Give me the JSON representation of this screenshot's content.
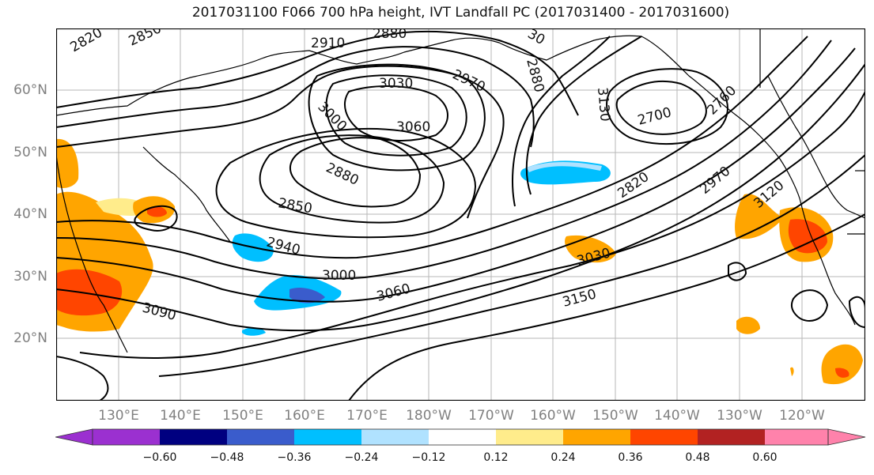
{
  "title": "2017031100 F066 700 hPa height, IVT Landfall PC (2017031400 - 2017031600)",
  "lat_labels": [
    "60°N",
    "50°N",
    "40°N",
    "30°N",
    "20°N"
  ],
  "lon_labels": [
    "130°E",
    "140°E",
    "150°E",
    "160°E",
    "170°E",
    "180°W",
    "170°W",
    "160°W",
    "150°W",
    "140°W",
    "130°W",
    "120°W"
  ],
  "contour_labels": {
    "c2820a": "2820",
    "c2850a": "2850",
    "c2910": "2910",
    "c2880a": "2880",
    "c3030a": "3030",
    "c3060a": "3060",
    "c3000a": "3000",
    "c2970a": "2970",
    "c2880b": "2880",
    "c2850b": "2850",
    "c2940": "2940",
    "c3000b": "3000",
    "c3060b": "3060",
    "c3090": "3090",
    "c3150": "3150",
    "c3030b": "3030",
    "c2820b": "2820",
    "c2970b": "2970",
    "c3120": "3120",
    "c2700": "2700",
    "c2760": "2760",
    "c2790": "30",
    "c2830": "2880",
    "c3130": "3130"
  },
  "colorbar": {
    "ticks": [
      "−0.60",
      "−0.48",
      "−0.36",
      "−0.24",
      "−0.12",
      "0.12",
      "0.24",
      "0.36",
      "0.48",
      "0.60"
    ],
    "colors": [
      "#9b30d0",
      "#000080",
      "#3a5ccc",
      "#00bfff",
      "#b0e2ff",
      "#ffffff",
      "#ffec8b",
      "#ffa500",
      "#ff4500",
      "#b22222",
      "#ff82ab"
    ]
  }
}
